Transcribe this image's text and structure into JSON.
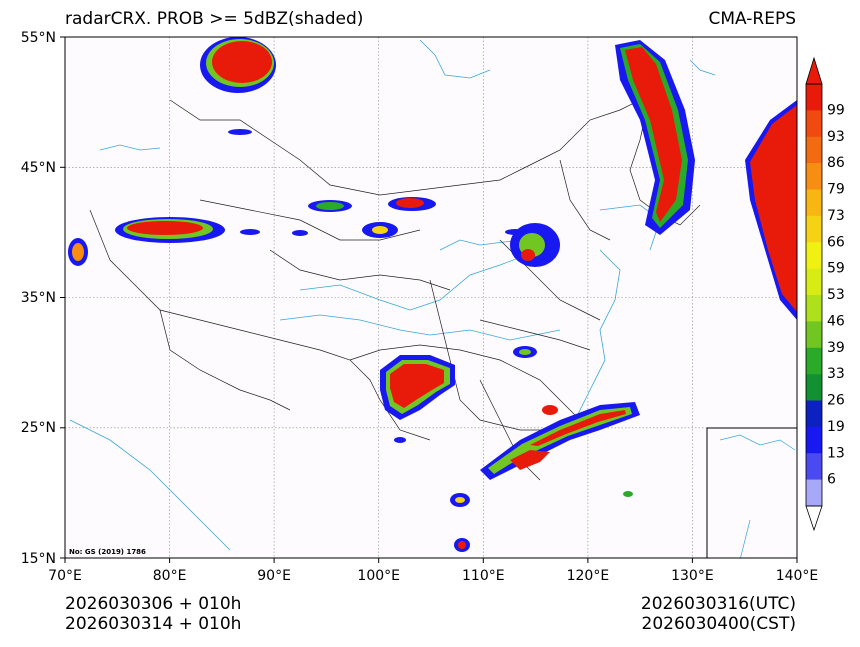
{
  "title": {
    "left": "radarCRX. PROB >= 5dBZ(shaded)",
    "right": "CMA-REPS"
  },
  "map": {
    "lon_range": [
      70,
      140
    ],
    "lat_range": [
      15,
      55
    ],
    "x_ticks": [
      "70°E",
      "80°E",
      "90°E",
      "100°E",
      "110°E",
      "120°E",
      "130°E",
      "140°E"
    ],
    "y_ticks": [
      "55°N",
      "45°N",
      "35°N",
      "25°N",
      "15°N"
    ],
    "watermark": "No: GS (2019) 1786"
  },
  "colorbar": {
    "labels": [
      "99",
      "93",
      "86",
      "79",
      "73",
      "66",
      "59",
      "53",
      "46",
      "39",
      "33",
      "26",
      "19",
      "13",
      "6"
    ],
    "colors": [
      "#e81b0a",
      "#f04a10",
      "#f26a12",
      "#f78d12",
      "#f8b613",
      "#f6d215",
      "#f1f013",
      "#d7ec15",
      "#aee11c",
      "#72c622",
      "#2aaa28",
      "#119131",
      "#0c21c2",
      "#1818f0",
      "#4a4af0",
      "#a8a8f8"
    ],
    "min_color": "#ffffff",
    "max_color": "#e81b0a"
  },
  "footer": {
    "left_line1": "2026030306  +  010h",
    "left_line2": "2026030314  +  010h",
    "right_line1": "2026030316(UTC)",
    "right_line2": "2026030400(CST)"
  }
}
